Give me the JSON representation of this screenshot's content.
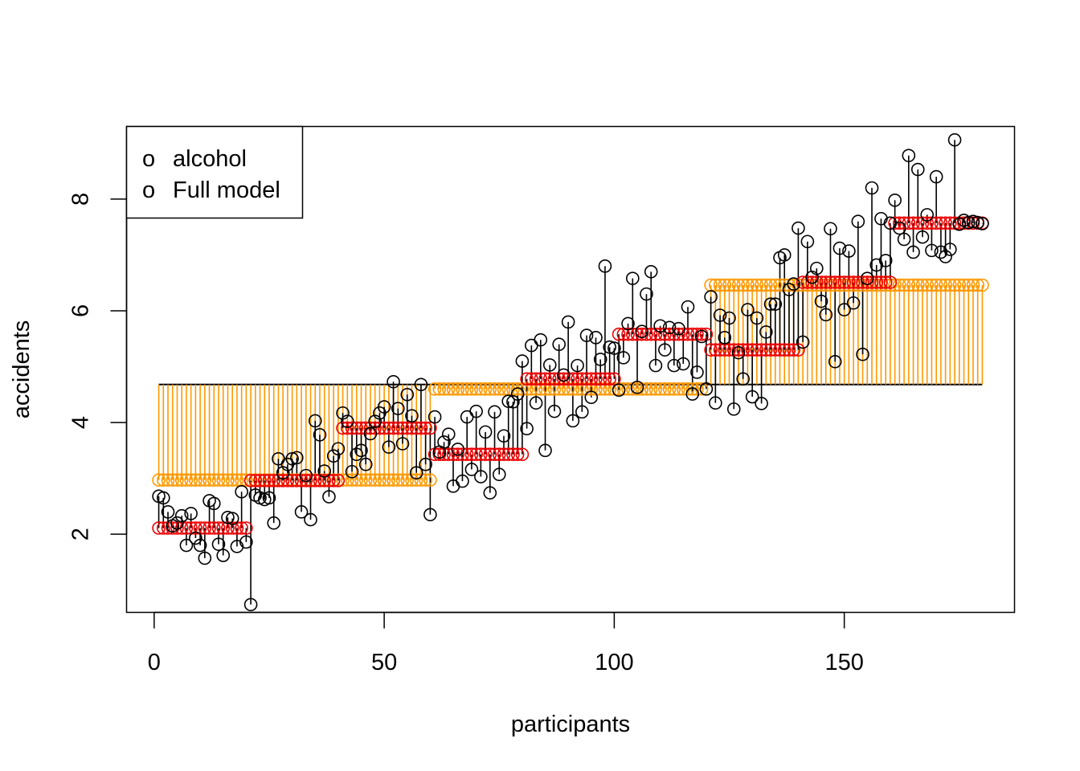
{
  "chart_data": {
    "type": "scatter",
    "title": "",
    "xlabel": "participants",
    "ylabel": "accidents",
    "xlim": [
      -6,
      187
    ],
    "ylim": [
      0.6,
      9.3
    ],
    "x_ticks": [
      0,
      50,
      100,
      150
    ],
    "x_tick_labels": [
      "0",
      "50",
      "100",
      "150"
    ],
    "y_ticks": [
      2,
      4,
      6,
      8
    ],
    "y_tick_labels": [
      "2",
      "4",
      "6",
      "8"
    ],
    "grid": false,
    "legend": {
      "position": "top-left",
      "entries": [
        {
          "label": "alcohol",
          "symbol": "o",
          "color": "#FF9900"
        },
        {
          "label": "Full model",
          "symbol": "o",
          "color": "#EE0000"
        }
      ]
    },
    "grand_mean": 4.68,
    "colors": {
      "observed": "#000000",
      "alcohol": "#FF9900",
      "full_model": "#EE0000",
      "mean_line": "#000000"
    },
    "alcohol_fitted": [
      {
        "from": 1,
        "to": 60,
        "value": 2.97
      },
      {
        "from": 61,
        "to": 120,
        "value": 4.6
      },
      {
        "from": 121,
        "to": 180,
        "value": 6.46
      }
    ],
    "full_model_fitted": [
      {
        "from": 1,
        "to": 20,
        "value": 2.11
      },
      {
        "from": 21,
        "to": 40,
        "value": 2.96
      },
      {
        "from": 41,
        "to": 60,
        "value": 3.9
      },
      {
        "from": 61,
        "to": 80,
        "value": 3.43
      },
      {
        "from": 81,
        "to": 100,
        "value": 4.78
      },
      {
        "from": 101,
        "to": 120,
        "value": 5.58
      },
      {
        "from": 121,
        "to": 140,
        "value": 5.3
      },
      {
        "from": 141,
        "to": 160,
        "value": 6.51
      },
      {
        "from": 161,
        "to": 180,
        "value": 7.57
      }
    ],
    "series": [
      {
        "name": "observed",
        "x_start": 1,
        "values": [
          2.68,
          2.65,
          2.4,
          2.15,
          2.2,
          2.33,
          1.8,
          2.37,
          1.93,
          1.8,
          1.57,
          2.6,
          2.55,
          1.82,
          1.62,
          2.3,
          2.28,
          1.78,
          2.76,
          1.86,
          0.74,
          2.7,
          2.65,
          2.62,
          2.65,
          2.2,
          3.35,
          3.1,
          3.25,
          3.35,
          3.37,
          2.4,
          3.05,
          2.26,
          4.03,
          3.78,
          3.13,
          2.67,
          3.4,
          3.53,
          4.17,
          4.02,
          3.12,
          3.43,
          3.5,
          3.25,
          3.8,
          4.02,
          4.17,
          4.28,
          3.56,
          4.73,
          4.25,
          3.62,
          4.5,
          4.12,
          3.1,
          4.68,
          3.25,
          2.35,
          4.1,
          3.47,
          3.65,
          3.79,
          2.86,
          3.52,
          2.95,
          4.1,
          3.16,
          4.2,
          3.03,
          3.83,
          2.74,
          4.19,
          3.07,
          3.76,
          4.38,
          4.37,
          4.51,
          5.1,
          3.89,
          5.38,
          4.35,
          5.48,
          3.5,
          5.03,
          4.2,
          5.4,
          4.85,
          5.8,
          4.03,
          5.02,
          4.19,
          5.56,
          4.45,
          5.52,
          5.13,
          6.8,
          5.35,
          5.33,
          4.58,
          5.16,
          5.77,
          6.58,
          4.63,
          5.63,
          6.3,
          6.7,
          5.02,
          5.73,
          5.3,
          5.7,
          5.02,
          5.68,
          5.05,
          6.07,
          4.51,
          4.9,
          5.54,
          4.6,
          6.25,
          4.35,
          5.92,
          5.52,
          5.87,
          4.24,
          5.25,
          4.78,
          6.02,
          4.46,
          5.87,
          4.34,
          5.62,
          6.12,
          6.12,
          6.95,
          7.0,
          6.38,
          6.48,
          7.48,
          5.44,
          7.24,
          6.6,
          6.76,
          6.17,
          5.93,
          7.47,
          5.09,
          7.12,
          6.02,
          7.07,
          6.14,
          7.6,
          5.22,
          6.58,
          8.2,
          6.82,
          7.65,
          6.9,
          7.57,
          7.98,
          7.48,
          7.28,
          8.78,
          7.05,
          8.53,
          7.32,
          7.72,
          7.08,
          8.4,
          7.05,
          6.97,
          7.1,
          9.06,
          7.55,
          7.62,
          7.58,
          7.6,
          7.58,
          7.56
        ]
      }
    ]
  }
}
